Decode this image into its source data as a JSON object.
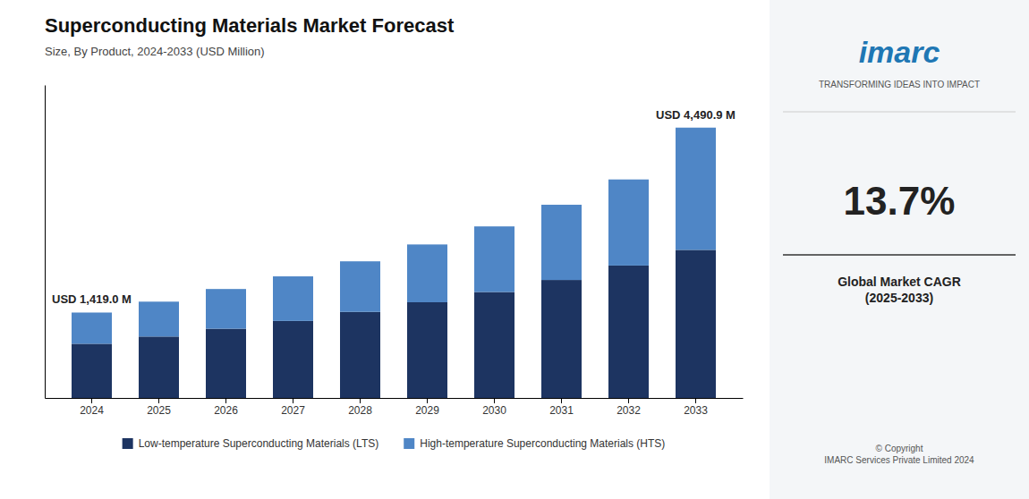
{
  "chart_data": {
    "type": "bar",
    "stacked": true,
    "title": "Superconducting Materials Market Forecast",
    "subtitle": "Size, By Product, 2024-2033 (USD Million)",
    "categories": [
      "2024",
      "2025",
      "2026",
      "2027",
      "2028",
      "2029",
      "2030",
      "2031",
      "2032",
      "2033"
    ],
    "series": [
      {
        "name": "Low-temperature Superconducting Materials (LTS)",
        "color": "#1d3461",
        "values": [
          900,
          1020,
          1150,
          1280,
          1430,
          1590,
          1760,
          1960,
          2200,
          2460
        ]
      },
      {
        "name": "High-temperature Superconducting Materials (HTS)",
        "color": "#4f86c6",
        "values": [
          519,
          580,
          660,
          740,
          840,
          960,
          1090,
          1250,
          1430,
          2031
        ]
      }
    ],
    "ylim": [
      0,
      5200
    ],
    "tick_labels": "x",
    "grid": false,
    "legend": "bottom",
    "annotations": [
      {
        "text": "USD 1,419.0 M",
        "x": "2024"
      },
      {
        "text": "USD 4,490.9 M",
        "x": "2033"
      },
      {
        "text": "imarc"
      },
      {
        "text": "TRANSFORMING IDEAS INTO IMPACT"
      },
      {
        "text": "13.7%"
      },
      {
        "text": "Global Market CAGR\n(2025-2033)"
      },
      {
        "text": "© Copyright\nIMARC Services Private Limited 2024"
      }
    ]
  }
}
